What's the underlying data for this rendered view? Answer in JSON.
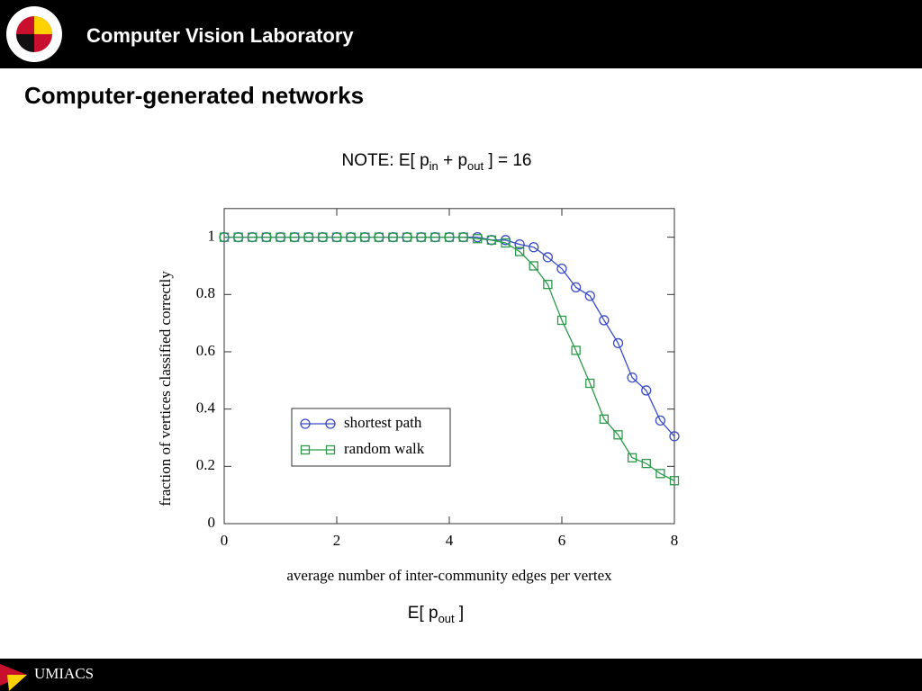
{
  "header": {
    "title": "Computer Vision Laboratory"
  },
  "slide": {
    "title": "Computer-generated networks",
    "note": [
      "NOTE: E[ p",
      "in",
      " + p",
      "out",
      " ] = 16"
    ],
    "caption": [
      "E[ p",
      "out",
      " ]"
    ]
  },
  "footer": {
    "label": "UMIACS"
  },
  "chart_data": {
    "type": "line",
    "xlabel": "average number of inter-community edges per vertex",
    "ylabel": "fraction of vertices classified correctly",
    "x": [
      0,
      0.25,
      0.5,
      0.75,
      1,
      1.25,
      1.5,
      1.75,
      2,
      2.25,
      2.5,
      2.75,
      3,
      3.25,
      3.5,
      3.75,
      4,
      4.25,
      4.5,
      4.75,
      5,
      5.25,
      5.5,
      5.75,
      6,
      6.25,
      6.5,
      6.75,
      7,
      7.25,
      7.5,
      7.75,
      8
    ],
    "series": [
      {
        "name": "shortest path",
        "color": "#3a4bc8",
        "marker": "circle",
        "values": [
          1,
          1,
          1,
          1,
          1,
          1,
          1,
          1,
          1,
          1,
          1,
          1,
          1,
          1,
          1,
          1,
          1,
          1,
          1,
          0.99,
          0.99,
          0.975,
          0.965,
          0.93,
          0.89,
          0.825,
          0.795,
          0.71,
          0.63,
          0.51,
          0.465,
          0.36,
          0.305
        ]
      },
      {
        "name": "random walk",
        "color": "#2a9a4a",
        "marker": "square",
        "values": [
          1,
          1,
          1,
          1,
          1,
          1,
          1,
          1,
          1,
          1,
          1,
          1,
          1,
          1,
          1,
          1,
          1,
          1,
          0.995,
          0.99,
          0.98,
          0.95,
          0.9,
          0.835,
          0.71,
          0.605,
          0.49,
          0.365,
          0.31,
          0.23,
          0.21,
          0.175,
          0.15
        ]
      }
    ],
    "xlim": [
      0,
      8
    ],
    "xticks": [
      0,
      2,
      4,
      6,
      8
    ],
    "ylim": [
      0,
      1.1
    ],
    "yticks": [
      0,
      0.2,
      0.4,
      0.6,
      0.8,
      1
    ],
    "grid": false,
    "legend": "lower left"
  }
}
